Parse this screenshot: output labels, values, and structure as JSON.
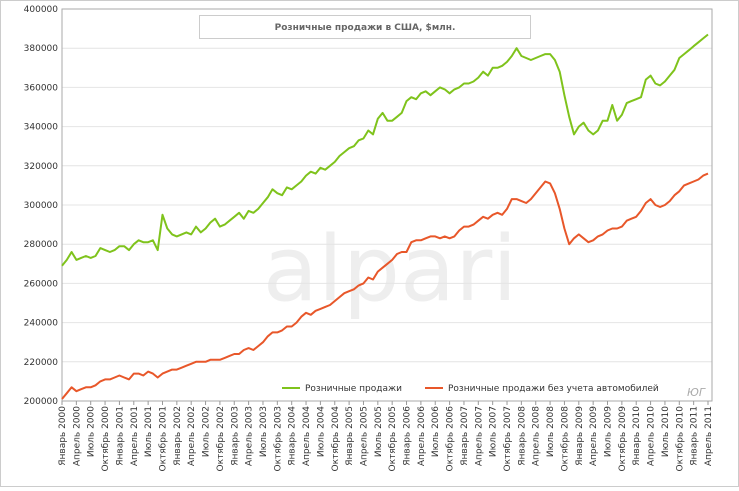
{
  "chart_data": {
    "type": "line",
    "title": "Розничные продажи в США, $млн.",
    "watermark": "alpari",
    "signature": "ЮГ",
    "categories": [
      "Январь 2000",
      null,
      null,
      "Апрель 2000",
      null,
      null,
      "Июль 2000",
      null,
      null,
      "Октябрь 2000",
      null,
      null,
      "Январь 2001",
      null,
      null,
      "Апрель 2001",
      null,
      null,
      "Июль 2001",
      null,
      null,
      "Октябрь 2001",
      null,
      null,
      "Январь 2002",
      null,
      null,
      "Апрель 2002",
      null,
      null,
      "Июль 2002",
      null,
      null,
      "Октябрь 2002",
      null,
      null,
      "Январь 2003",
      null,
      null,
      "Апрель 2003",
      null,
      null,
      "Июль 2003",
      null,
      null,
      "Октябрь 2003",
      null,
      null,
      "Январь 2004",
      null,
      null,
      "Апрель 2004",
      null,
      null,
      "Июль 2004",
      null,
      null,
      "Октябрь 2004",
      null,
      null,
      "Январь 2005",
      null,
      null,
      "Апрель 2005",
      null,
      null,
      "Июль 2005",
      null,
      null,
      "Октябрь 2005",
      null,
      null,
      "Январь 2006",
      null,
      null,
      "Апрель 2006",
      null,
      null,
      "Июль 2006",
      null,
      null,
      "Октябрь 2006",
      null,
      null,
      "Январь 2007",
      null,
      null,
      "Апрель 2007",
      null,
      null,
      "Июль 2007",
      null,
      null,
      "Октябрь 2007",
      null,
      null,
      "Январь 2008",
      null,
      null,
      "Апрель 2008",
      null,
      null,
      "Июль 2008",
      null,
      null,
      "Октябрь 2008",
      null,
      null,
      "Январь 2009",
      null,
      null,
      "Апрель 2009",
      null,
      null,
      "Июль 2009",
      null,
      null,
      "Октябрь 2009",
      null,
      null,
      "Январь 2010",
      null,
      null,
      "Апрель 2010",
      null,
      null,
      "Июль 2010",
      null,
      null,
      "Октябрь 2010",
      null,
      null,
      "Январь 2011",
      null,
      null,
      "Апрель 2011"
    ],
    "series": [
      {
        "name": "Розничные продажи",
        "color": "#7fc31c",
        "values": [
          269000,
          272000,
          276000,
          272000,
          273000,
          274000,
          273000,
          274000,
          278000,
          277000,
          276000,
          277000,
          279000,
          279000,
          277000,
          280000,
          282000,
          281000,
          281000,
          282000,
          277000,
          295000,
          288000,
          285000,
          284000,
          285000,
          286000,
          285000,
          289000,
          286000,
          288000,
          291000,
          293000,
          289000,
          290000,
          292000,
          294000,
          296000,
          293000,
          297000,
          296000,
          298000,
          301000,
          304000,
          308000,
          306000,
          305000,
          309000,
          308000,
          310000,
          312000,
          315000,
          317000,
          316000,
          319000,
          318000,
          320000,
          322000,
          325000,
          327000,
          329000,
          330000,
          333000,
          334000,
          338000,
          336000,
          344000,
          347000,
          343000,
          343000,
          345000,
          347000,
          353000,
          355000,
          354000,
          357000,
          358000,
          356000,
          358000,
          360000,
          359000,
          357000,
          359000,
          360000,
          362000,
          362000,
          363000,
          365000,
          368000,
          366000,
          370000,
          370000,
          371000,
          373000,
          376000,
          380000,
          376000,
          375000,
          374000,
          375000,
          376000,
          377000,
          377000,
          374000,
          368000,
          356000,
          345000,
          336000,
          340000,
          342000,
          338000,
          336000,
          338000,
          343000,
          343000,
          351000,
          343000,
          346000,
          352000,
          353000,
          354000,
          355000,
          364000,
          366000,
          362000,
          361000,
          363000,
          366000,
          369000,
          375000,
          377000,
          379000,
          381000,
          383000,
          385000,
          387000
        ]
      },
      {
        "name": "Розничные продажи без учета автомобилей",
        "color": "#e8572a",
        "values": [
          201000,
          204000,
          207000,
          205000,
          206000,
          207000,
          207000,
          208000,
          210000,
          211000,
          211000,
          212000,
          213000,
          212000,
          211000,
          214000,
          214000,
          213000,
          215000,
          214000,
          212000,
          214000,
          215000,
          216000,
          216000,
          217000,
          218000,
          219000,
          220000,
          220000,
          220000,
          221000,
          221000,
          221000,
          222000,
          223000,
          224000,
          224000,
          226000,
          227000,
          226000,
          228000,
          230000,
          233000,
          235000,
          235000,
          236000,
          238000,
          238000,
          240000,
          243000,
          245000,
          244000,
          246000,
          247000,
          248000,
          249000,
          251000,
          253000,
          255000,
          256000,
          257000,
          259000,
          260000,
          263000,
          262000,
          266000,
          268000,
          270000,
          272000,
          275000,
          276000,
          276000,
          281000,
          282000,
          282000,
          283000,
          284000,
          284000,
          283000,
          284000,
          283000,
          284000,
          287000,
          289000,
          289000,
          290000,
          292000,
          294000,
          293000,
          295000,
          296000,
          295000,
          298000,
          303000,
          303000,
          302000,
          301000,
          303000,
          306000,
          309000,
          312000,
          311000,
          306000,
          298000,
          288000,
          280000,
          283000,
          285000,
          283000,
          281000,
          282000,
          284000,
          285000,
          287000,
          288000,
          288000,
          289000,
          292000,
          293000,
          294000,
          297000,
          301000,
          303000,
          300000,
          299000,
          300000,
          302000,
          305000,
          307000,
          310000,
          311000,
          312000,
          313000,
          315000,
          316000
        ]
      }
    ],
    "ylim": [
      200000,
      400000
    ],
    "yticks": [
      200000,
      220000,
      240000,
      260000,
      280000,
      300000,
      320000,
      340000,
      360000,
      380000,
      400000
    ],
    "grid": true
  }
}
